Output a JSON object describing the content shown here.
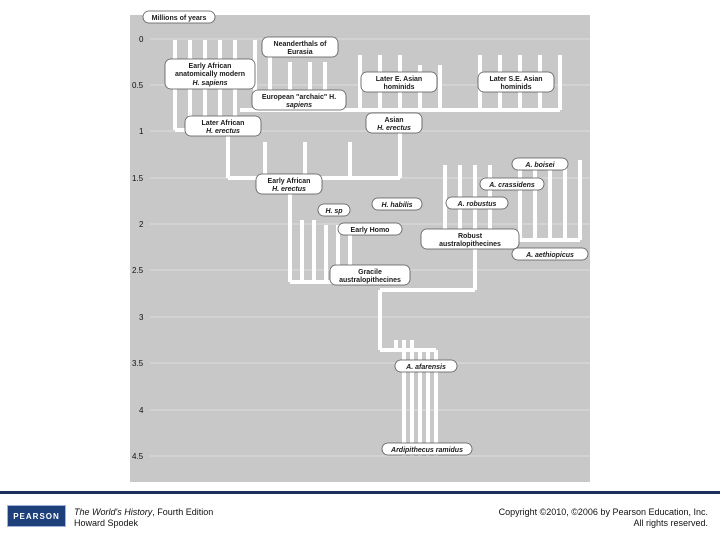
{
  "axis": {
    "title": "Millions of years",
    "ticks": [
      "0",
      "0.5",
      "1",
      "1.5",
      "2",
      "2.5",
      "3",
      "3.5",
      "4",
      "4.5"
    ]
  },
  "labels": {
    "neanderthals": [
      "Neanderthals of",
      "Eurasia"
    ],
    "early_african_sapiens": [
      "Early African",
      "anatomically modern",
      "H. sapiens"
    ],
    "european_archaic": [
      "European \"archaic\" H.",
      "sapiens"
    ],
    "later_e_asian": [
      "Later E. Asian",
      "hominids"
    ],
    "later_se_asian": [
      "Later S.E. Asian",
      "hominids"
    ],
    "later_african_erectus": [
      "Later African",
      "H. erectus"
    ],
    "asian_erectus": [
      "Asian",
      "H. erectus"
    ],
    "early_african_erectus": [
      "Early African",
      "H. erectus"
    ],
    "h_sp": "H. sp",
    "h_habilis": "H. habilis",
    "early_homo": "Early Homo",
    "a_boisei": "A. boisei",
    "a_crassidens": "A. crassidens",
    "a_robustus": "A. robustus",
    "robust_australopithecines": [
      "Robust",
      "australopithecines"
    ],
    "a_aethiopicus": "A. aethiopicus",
    "gracile": [
      "Gracile",
      "australopithecines"
    ],
    "a_afarensis": "A. afarensis",
    "ardipithecus": "Ardipithecus ramidus"
  },
  "colors": {
    "background": "#c8c8c8",
    "branch": "#ffffff",
    "footer_rule": "#1d2f5b",
    "logo": "#1d3f7a"
  },
  "footer": {
    "logo_text": "PEARSON",
    "book_title": "The World's History",
    "book_edition": ", Fourth Edition",
    "author": "Howard Spodek",
    "copyright": "Copyright ©2010, ©2006 by Pearson Education, Inc.",
    "rights": "All rights reserved."
  }
}
